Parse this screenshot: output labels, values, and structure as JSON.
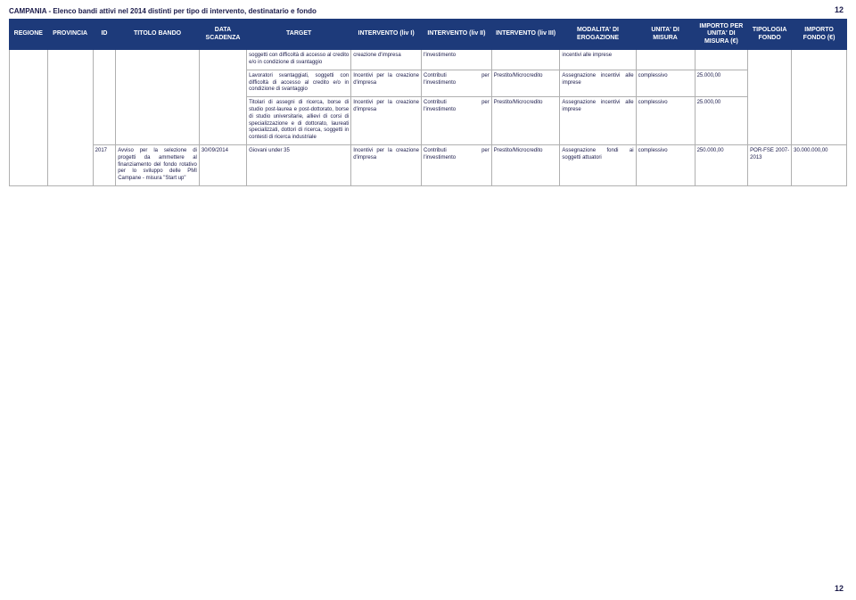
{
  "pageNumber": "12",
  "pageTitle": "CAMPANIA - Elenco bandi attivi nel 2014 distinti per tipo di intervento, destinatario e fondo",
  "headers": {
    "regione": "REGIONE",
    "provincia": "PROVINCIA",
    "id": "ID",
    "titolo": "TITOLO BANDO",
    "data": "DATA SCADENZA",
    "target": "TARGET",
    "liv1": "INTERVENTO (liv I)",
    "liv2": "INTERVENTO (liv II)",
    "liv3": "INTERVENTO (liv III)",
    "modalita": "MODALITA' DI EROGAZIONE",
    "unita": "UNITA' DI MISURA",
    "importoUnita": "IMPORTO PER UNITA' DI MISURA (€)",
    "tipologia": "TIPOLOGIA FONDO",
    "importoFondo": "IMPORTO FONDO (€)"
  },
  "rows": [
    {
      "regione": "",
      "provincia": "",
      "id": "",
      "titolo": "",
      "data": "",
      "target": "soggetti con difficoltà di accesso al credito e/o in condizione di svantaggio",
      "liv1": "creazione d'impresa",
      "liv2": "l'investimento",
      "liv3": "",
      "modalita": "incentivi alle imprese",
      "unita": "",
      "importoUnita": "",
      "tipologia": "",
      "importoFondo": ""
    },
    {
      "regione": "",
      "provincia": "",
      "id": "",
      "titolo": "",
      "data": "",
      "target": "Lavoratori svantaggiati, soggetti con difficoltà di accesso al credito e/o in condizione di svantaggio",
      "liv1": "Incentivi per la creazione d'impresa",
      "liv2": "Contributi per l'investimento",
      "liv3": "Prestito/Microcredito",
      "modalita": "Assegnazione incentivi alle imprese",
      "unita": "complessivo",
      "importoUnita": "25.000,00",
      "tipologia": "",
      "importoFondo": ""
    },
    {
      "regione": "",
      "provincia": "",
      "id": "",
      "titolo": "",
      "data": "",
      "target": "Titolari di assegni di ricerca, borse di studio post-laurea e post-dottorato, borse di studio universitarie, allievi di corsi di specializzazione e di dottorato, laureati specializzati, dottori di ricerca, soggetti in contesti di ricerca industriale",
      "liv1": "Incentivi per la creazione d'impresa",
      "liv2": "Contributi per l'investimento",
      "liv3": "Prestito/Microcredito",
      "modalita": "Assegnazione incentivi alle imprese",
      "unita": "complessivo",
      "importoUnita": "25.000,00",
      "tipologia": "",
      "importoFondo": ""
    },
    {
      "regione": "",
      "provincia": "",
      "id": "2017",
      "titolo": "Avviso per la selezione di progetti da ammettere al finanziamento del fondo rotativo per lo sviluppo delle PMI Campane - misura \"Start up\"",
      "data": "30/09/2014",
      "target": "Giovani under 35",
      "liv1": "Incentivi per la creazione d'impresa",
      "liv2": "Contributi per l'investimento",
      "liv3": "Prestito/Microcredito",
      "modalita": "Assegnazione fondi ai soggetti attuatori",
      "unita": "complessivo",
      "importoUnita": "250.000,00",
      "tipologia": "POR-FSE 2007-2013",
      "importoFondo": "30.000.000,00"
    }
  ],
  "styling": {
    "headerBg": "#1d3a7a",
    "headerFg": "#ffffff",
    "cellBorder": "#b0b0b0",
    "textColor": "#1a1a4a",
    "pageBg": "#ffffff",
    "fontFamily": "Verdana",
    "headerFontSize": 7,
    "cellFontSize": 6,
    "pageNumFontSize": 9,
    "titleFontSize": 8
  }
}
